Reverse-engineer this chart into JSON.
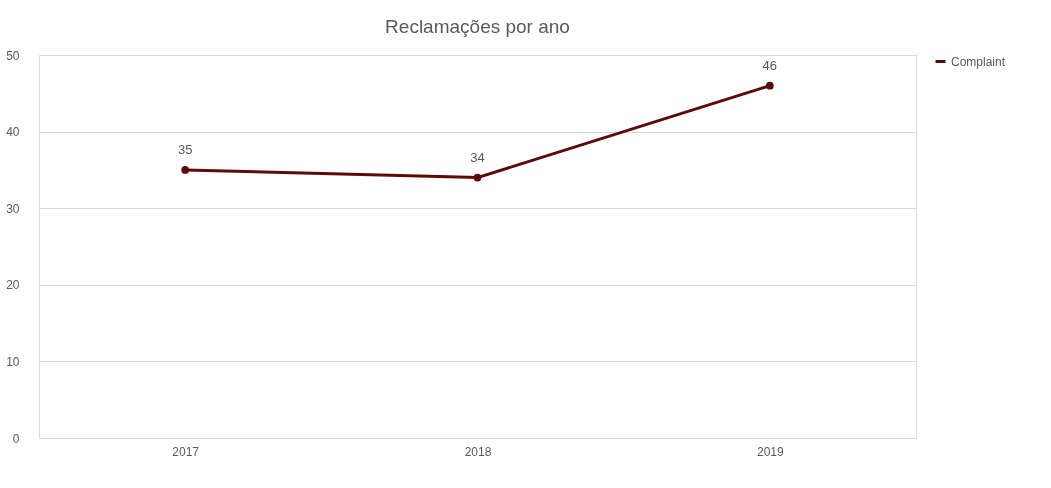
{
  "chart_data": {
    "type": "line",
    "title": "Reclamações por ano",
    "categories": [
      "2017",
      "2018",
      "2019"
    ],
    "series": [
      {
        "name": "Complaint",
        "color": "#5c0a0a",
        "values": [
          35,
          34,
          46
        ]
      }
    ],
    "ylim": [
      0,
      50
    ],
    "yticks": [
      0,
      10,
      20,
      30,
      40,
      50
    ],
    "grid": "y",
    "legend": "right",
    "marker": "circle",
    "line_style": "solid",
    "data_labels": true
  }
}
